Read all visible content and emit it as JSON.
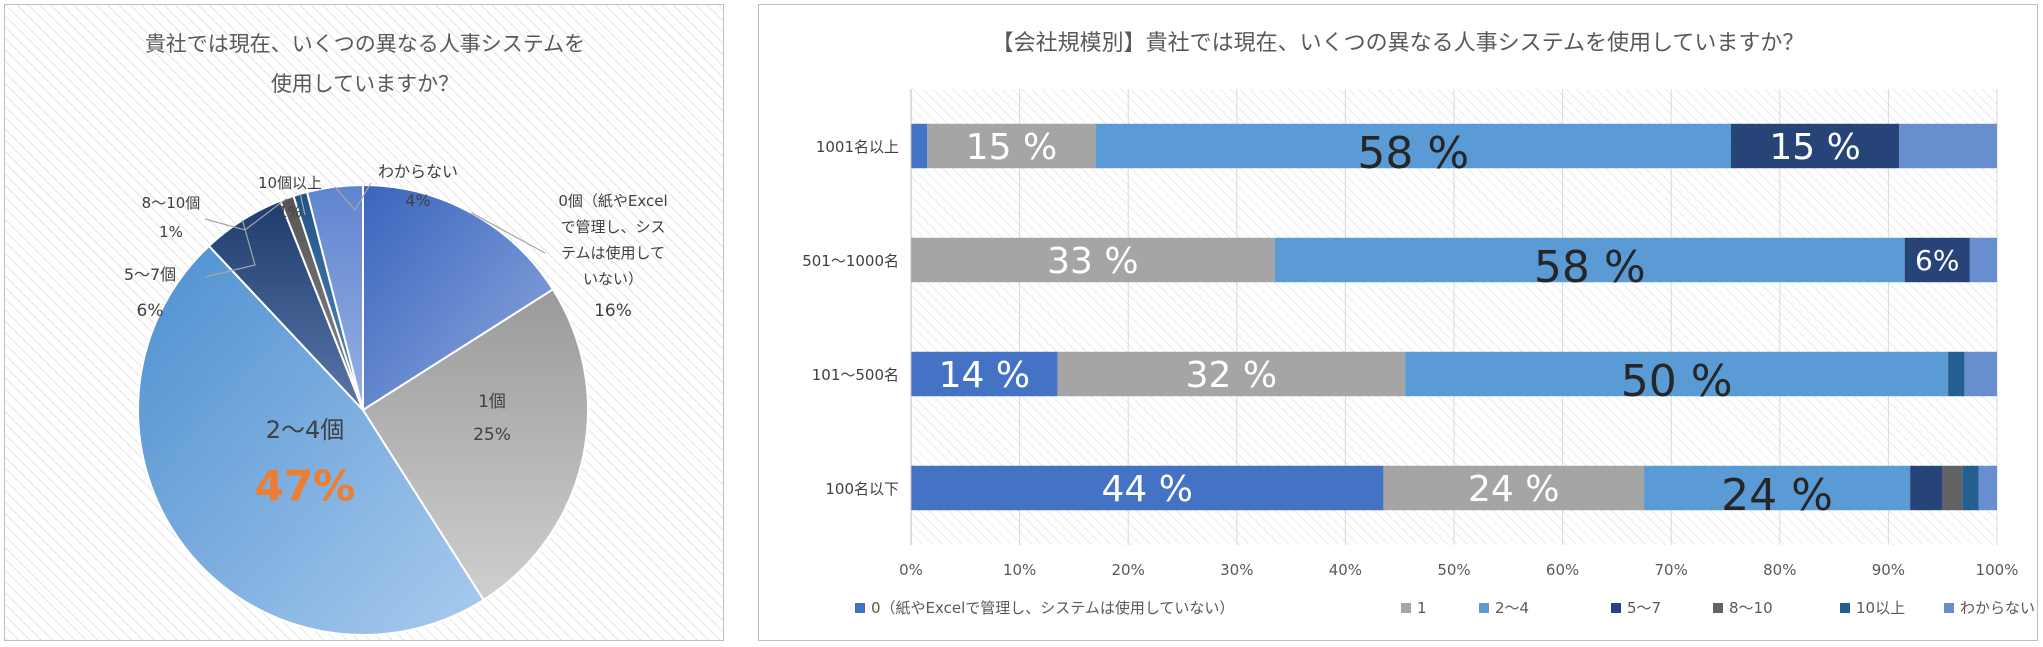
{
  "chart_data": [
    {
      "type": "pie",
      "title_lines": [
        "貴社では現在、いくつの異なる人事システムを",
        "使用していますか？"
      ],
      "slices": [
        {
          "label_lines": [
            "0個（紙やExcel",
            "で管理し、シス",
            "テムは使用して",
            "いない）"
          ],
          "value": 16,
          "value_text": "16%",
          "color": "#4a72c4"
        },
        {
          "label_lines": [
            "1個"
          ],
          "value": 25,
          "value_text": "25%",
          "color": "#a5a5a5"
        },
        {
          "label_lines": [
            "2～4個"
          ],
          "value": 47,
          "value_text": "47%",
          "color": "#5b9bd5"
        },
        {
          "label_lines": [
            "5～7個"
          ],
          "value": 6,
          "value_text": "6%",
          "color": "#26467a"
        },
        {
          "label_lines": [
            "8～10個"
          ],
          "value": 1,
          "value_text": "1%",
          "color": "#636363"
        },
        {
          "label_lines": [
            "10個以上"
          ],
          "value": 1,
          "value_text": "1%",
          "color": "#255e91"
        },
        {
          "label_lines": [
            "わからない"
          ],
          "value": 4,
          "value_text": "4%",
          "color": "#6f8fd6"
        }
      ]
    },
    {
      "type": "bar",
      "orientation": "horizontal-stacked-100",
      "title": "【会社規模別】貴社では現在、いくつの異なる人事システムを使用していますか？",
      "categories": [
        "1001名以上",
        "501～1000名",
        "101～500名",
        "100名以下"
      ],
      "xlim": [
        0,
        100
      ],
      "x_ticks": [
        "0%",
        "10%",
        "20%",
        "30%",
        "40%",
        "50%",
        "60%",
        "70%",
        "80%",
        "90%",
        "100%"
      ],
      "legend_position": "bottom",
      "series": [
        {
          "name": "0（紙やExcelで管理し、システムは使用していない）",
          "color": "#4472c4",
          "values": [
            1.5,
            0,
            13.5,
            43.5
          ],
          "labels": [
            "",
            "",
            "14 %",
            "44 %"
          ]
        },
        {
          "name": "1",
          "color": "#a5a5a5",
          "values": [
            15.5,
            33.5,
            32,
            24
          ],
          "labels": [
            "15 %",
            "33 %",
            "32 %",
            "24 %"
          ]
        },
        {
          "name": "2～4",
          "color": "#5b9bd5",
          "values": [
            58.5,
            58,
            50,
            24.5
          ],
          "labels": [
            "58 %",
            "58 %",
            "50 %",
            "24 %"
          ]
        },
        {
          "name": "5～7",
          "color": "#264478",
          "values": [
            15.5,
            6,
            0,
            3
          ],
          "labels": [
            "15 %",
            "6%",
            "",
            ""
          ]
        },
        {
          "name": "8～10",
          "color": "#636363",
          "values": [
            0,
            0,
            0,
            1.8
          ],
          "labels": [
            "",
            "",
            "",
            ""
          ]
        },
        {
          "name": "10以上",
          "color": "#255e91",
          "values": [
            0,
            0,
            1.5,
            1.5
          ],
          "labels": [
            "",
            "",
            "",
            ""
          ]
        },
        {
          "name": "わからない",
          "color": "#698ed0",
          "values": [
            9,
            2.5,
            3,
            1.7
          ],
          "labels": [
            "",
            "",
            "",
            ""
          ]
        }
      ]
    }
  ]
}
